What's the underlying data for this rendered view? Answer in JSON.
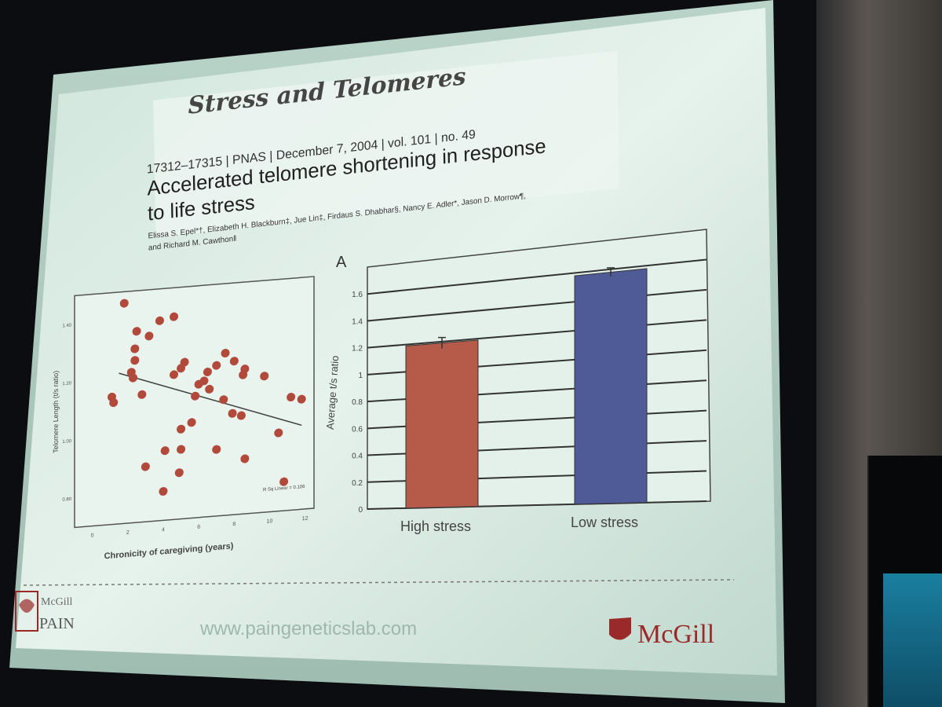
{
  "slide": {
    "title": "Stress and Telomeres",
    "paper": {
      "citation": "17312–17315  |  PNAS  |  December 7, 2004  |  vol. 101  |  no. 49",
      "title_line1": "Accelerated telomere shortening in response",
      "title_line2": "to life stress",
      "authors_line1": "Elissa S. Epel*†, Elizabeth H. Blackburn‡, Jue Lin‡, Firdaus S. Dhabhar§, Nancy E. Adler*, Jason D. Morrow¶,",
      "authors_line2": "and Richard M. Cawthon‖"
    },
    "panel_label": "A",
    "footer": {
      "logo_left_line1": "McGill",
      "logo_left_line2": "PAIN",
      "url": "www.paingeneticslab.com",
      "logo_right": "McGill"
    }
  },
  "chart_data": [
    {
      "type": "scatter",
      "xlabel": "Chronicity of caregiving (years)",
      "ylabel": "Telomere Length (t/s ratio)",
      "annotation": "R Sq Linear = 0.106",
      "xlim": [
        -1,
        12.5
      ],
      "ylim": [
        0.7,
        1.5
      ],
      "x_ticks": [
        "0",
        "2",
        "4",
        "6",
        "8",
        "10",
        "12"
      ],
      "y_ticks": [
        "0.80",
        "1.00",
        "1.20",
        "1.40"
      ],
      "points": [
        [
          1.2,
          1.12
        ],
        [
          1.8,
          1.46
        ],
        [
          2.5,
          1.36
        ],
        [
          2.4,
          1.3
        ],
        [
          2.4,
          1.26
        ],
        [
          2.2,
          1.22
        ],
        [
          2.3,
          1.2
        ],
        [
          3.2,
          1.34
        ],
        [
          3.8,
          1.39
        ],
        [
          1.1,
          1.14
        ],
        [
          2.8,
          1.14
        ],
        [
          4.6,
          1.2
        ],
        [
          5.0,
          1.22
        ],
        [
          5.2,
          1.24
        ],
        [
          6.0,
          1.16
        ],
        [
          6.5,
          1.2
        ],
        [
          7.0,
          1.22
        ],
        [
          7.5,
          1.26
        ],
        [
          8.0,
          1.23
        ],
        [
          8.6,
          1.2
        ],
        [
          8.5,
          1.18
        ],
        [
          9.7,
          1.17
        ],
        [
          6.3,
          1.17
        ],
        [
          5.8,
          1.12
        ],
        [
          6.6,
          1.14
        ],
        [
          7.4,
          1.1
        ],
        [
          7.9,
          1.05
        ],
        [
          8.4,
          1.04
        ],
        [
          5.6,
          1.03
        ],
        [
          5.0,
          1.01
        ],
        [
          4.1,
          0.94
        ],
        [
          5.0,
          0.94
        ],
        [
          7.0,
          0.93
        ],
        [
          3.0,
          0.89
        ],
        [
          4.9,
          0.86
        ],
        [
          8.6,
          0.89
        ],
        [
          10.5,
          0.97
        ],
        [
          4.0,
          0.8
        ],
        [
          10.8,
          0.8
        ],
        [
          11.2,
          1.09
        ],
        [
          11.8,
          1.08
        ],
        [
          4.6,
          1.4
        ]
      ],
      "trend_line": [
        [
          1.5,
          1.22
        ],
        [
          11.8,
          0.99
        ]
      ]
    },
    {
      "type": "bar",
      "categories": [
        "High stress",
        "Low stress"
      ],
      "values": [
        1.19,
        1.58
      ],
      "errors": [
        0.04,
        0.03
      ],
      "colors": [
        "#b65a4a",
        "#4f5b97"
      ],
      "xlabel": "",
      "ylabel": "Average t/s ratio",
      "ylim": [
        0,
        1.8
      ],
      "y_ticks": [
        "0",
        "0.2",
        "0.4",
        "0.6",
        "0.8",
        "1",
        "1.2",
        "1.4",
        "1.6"
      ],
      "grid": true
    }
  ]
}
